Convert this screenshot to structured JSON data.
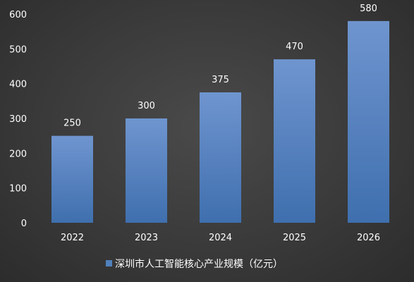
{
  "chart_data": {
    "type": "bar",
    "categories": [
      "2022",
      "2023",
      "2024",
      "2025",
      "2026"
    ],
    "series": [
      {
        "name": "深圳市人工智能核心产业规模（亿元）",
        "values": [
          250,
          300,
          375,
          470,
          580
        ],
        "color": "#4f81bd"
      }
    ],
    "data_labels": [
      "250",
      "300",
      "375",
      "470",
      "580"
    ],
    "y_ticks": [
      0,
      100,
      200,
      300,
      400,
      500,
      600
    ],
    "ylim": [
      0,
      600
    ],
    "grid": false,
    "legend_position": "bottom",
    "background": "#3b3b3b"
  }
}
